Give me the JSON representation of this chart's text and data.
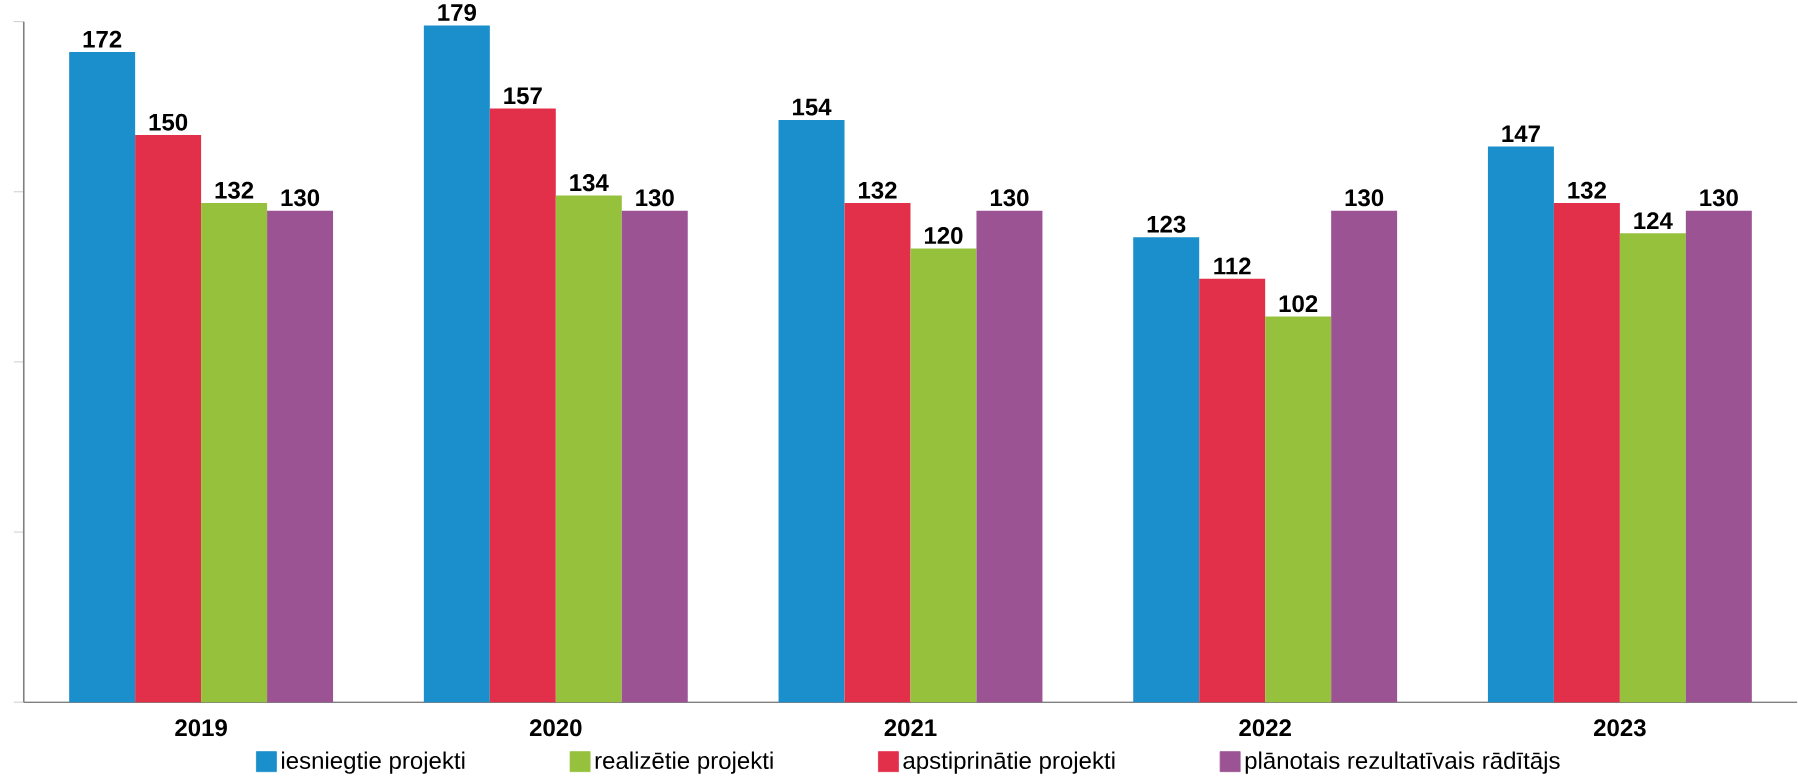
{
  "chart_data": {
    "type": "bar",
    "categories": [
      "2019",
      "2020",
      "2021",
      "2022",
      "2023"
    ],
    "series": [
      {
        "name": "iesniegtie projekti",
        "color": "#1a8fcc",
        "values": [
          172,
          179,
          154,
          123,
          147
        ]
      },
      {
        "name": "apstiprinātie projekti",
        "color": "#e3304a",
        "values": [
          150,
          157,
          132,
          112,
          132
        ]
      },
      {
        "name": "realizētie projekti",
        "color": "#95c13d",
        "values": [
          132,
          134,
          120,
          102,
          124
        ]
      },
      {
        "name": "plānotais rezultatīvais rādītājs",
        "color": "#9b5394",
        "values": [
          130,
          130,
          130,
          130,
          130
        ]
      }
    ],
    "ylim": [
      0,
      180
    ],
    "yticks": [
      {
        "value": 0,
        "label": null
      },
      {
        "value": 45,
        "label": null
      },
      {
        "value": 90,
        "label": null
      },
      {
        "value": 135,
        "label": null
      },
      {
        "value": 180,
        "label": null
      }
    ],
    "tick_labels": "x",
    "data_labels": true,
    "legend": "bottom",
    "grid": false
  }
}
